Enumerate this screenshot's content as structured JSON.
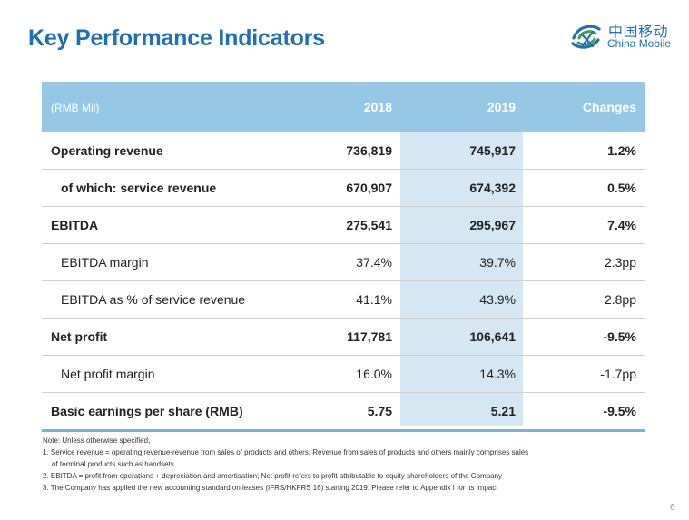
{
  "title": "Key Performance Indicators",
  "logo": {
    "cn": "中国移动",
    "en": "China Mobile"
  },
  "table": {
    "unit": "(RMB Mil)",
    "columns": [
      "2018",
      "2019",
      "Changes"
    ],
    "rows": [
      {
        "label": "Operating revenue",
        "v2018": "736,819",
        "v2019": "745,917",
        "change": "1.2%"
      },
      {
        "label": "of which: service revenue",
        "v2018": "670,907",
        "v2019": "674,392",
        "change": "0.5%"
      },
      {
        "label": "EBITDA",
        "v2018": "275,541",
        "v2019": "295,967",
        "change": "7.4%"
      },
      {
        "label": "EBITDA margin",
        "v2018": "37.4%",
        "v2019": "39.7%",
        "change": "2.3pp"
      },
      {
        "label": "EBITDA as % of service revenue",
        "v2018": "41.1%",
        "v2019": "43.9%",
        "change": "2.8pp"
      },
      {
        "label": "Net profit",
        "v2018": "117,781",
        "v2019": "106,641",
        "change": "-9.5%"
      },
      {
        "label": "Net profit margin",
        "v2018": "16.0%",
        "v2019": "14.3%",
        "change": "-1.7pp"
      },
      {
        "label": "Basic earnings per share (RMB)",
        "v2018": "5.75",
        "v2019": "5.21",
        "change": "-9.5%"
      }
    ]
  },
  "notes": {
    "heading": "Note: Unless otherwise specified,",
    "n1a": "1. Service revenue = operating revenue-revenue from sales of products and others; Revenue from sales of products and others mainly comprises sales",
    "n1b": "of terminal products such as handsets",
    "n2": "2. EBITDA = profit from operations + depreciation and amortisation; Net profit refers to profit attributable to equity shareholders of the Company",
    "n3": "3. The Company has applied the new accounting standard on leases (IFRS/HKFRS 16) starting 2019. Please refer to Appendix I for its impact"
  },
  "page_number": "6",
  "colors": {
    "title": "#1f6fb5",
    "header": "#96c8e6",
    "highlight_column": "#d5e7f2",
    "table_bottom_rule": "#74b3da"
  }
}
